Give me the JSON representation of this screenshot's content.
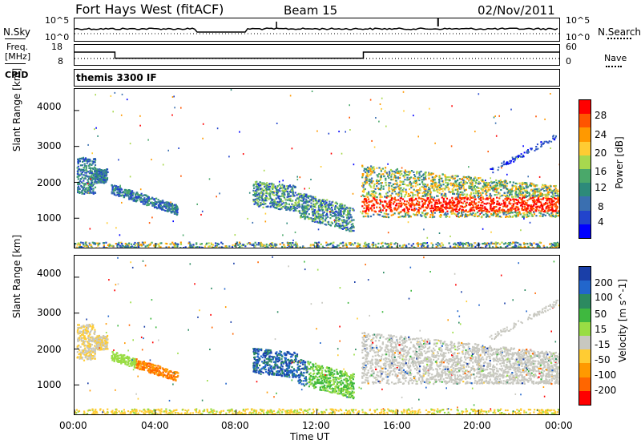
{
  "header": {
    "station": "Fort Hays West (fitACF)",
    "beam": "Beam 15",
    "date": "02/Nov/2011"
  },
  "left_labels": {
    "nsky": "N.Sky",
    "freq_line1": "Freq.",
    "freq_line2": "[MHz]",
    "cpid": "CPID"
  },
  "right_labels": {
    "nsearch": "N.Search",
    "nave": "Nave"
  },
  "noise_panel": {
    "ticks_left": [
      "10^5",
      "10^0"
    ],
    "ticks_right": [
      "10^5",
      "10^0"
    ]
  },
  "freq_panel": {
    "ticks_left": [
      "18",
      "8"
    ],
    "ticks_right": [
      "60",
      "0"
    ],
    "freq_steps": [
      {
        "t": 0.0,
        "v": 15.2
      },
      {
        "t": 2.0,
        "v": 11.0
      },
      {
        "t": 14.3,
        "v": 15.2
      },
      {
        "t": 24.0,
        "v": 15.2
      }
    ],
    "nave_level": 8
  },
  "cpid_text": "themis 3300 IF",
  "power_panel": {
    "ylabel": "Slant Range [km]",
    "colorbar_label": "Power [dB]",
    "colorbar_ticks": [
      "28",
      "24",
      "20",
      "16",
      "12",
      "8",
      "4"
    ],
    "colorbar_colors": [
      "#ff0000",
      "#ff5500",
      "#ff9900",
      "#ffcc33",
      "#a8d84e",
      "#4aa86a",
      "#2d8a7a",
      "#3a6fb0",
      "#2244cc",
      "#0000ff"
    ]
  },
  "velocity_panel": {
    "ylabel": "Slant Range [km]",
    "colorbar_label": "Velocity [m s^-1]",
    "colorbar_ticks": [
      "200",
      "100",
      "50",
      "15",
      "-15",
      "-50",
      "-100",
      "-200"
    ],
    "colorbar_colors": [
      "#1a3fa8",
      "#2266cc",
      "#2c8a60",
      "#3fb83f",
      "#99dd44",
      "#c8c8c0",
      "#ffcc33",
      "#ff9900",
      "#ff6600",
      "#ff0000"
    ]
  },
  "yticks": [
    "4000",
    "3000",
    "2000",
    "1000"
  ],
  "xaxis": {
    "ticks": [
      "00:00",
      "04:00",
      "08:00",
      "12:00",
      "16:00",
      "20:00",
      "00:00"
    ],
    "label": "Time UT"
  },
  "chart_data": {
    "type": "heatmap",
    "x_range_hours": [
      0,
      24
    ],
    "y_range_km": [
      180,
      4600
    ],
    "regions": [
      {
        "name": "early-patch",
        "t0": 0.1,
        "t1": 1.6,
        "r0": 1700,
        "r1": 2700
      },
      {
        "name": "descending-band",
        "t0": 1.8,
        "t1": 5.1,
        "r0": 1100,
        "r1": 1950
      },
      {
        "name": "midday-cloud",
        "t0": 8.8,
        "t1": 13.8,
        "r0": 700,
        "r1": 2100
      },
      {
        "name": "evening-band",
        "t0": 14.2,
        "t1": 24.0,
        "r0": 1050,
        "r1": 2500
      },
      {
        "name": "ground-scatter",
        "t0": 0.0,
        "t1": 24.0,
        "r0": 180,
        "r1": 350
      }
    ]
  }
}
